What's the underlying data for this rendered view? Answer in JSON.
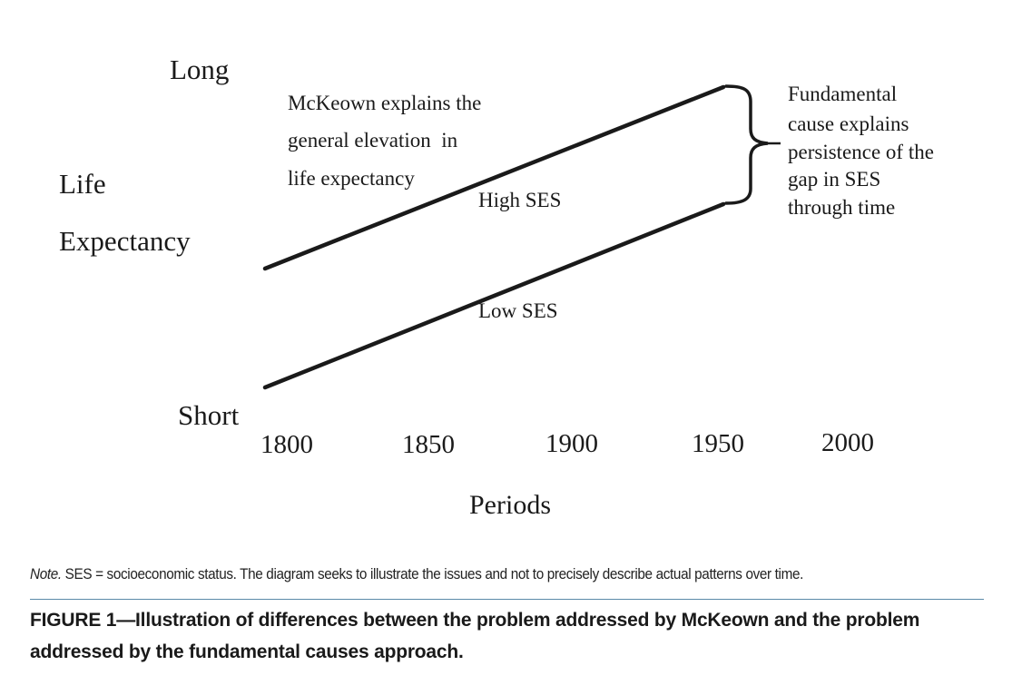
{
  "diagram": {
    "y_axis": {
      "label_line1": "Life",
      "label_line2": "Expectancy",
      "top_label": "Long",
      "bottom_label": "Short"
    },
    "x_axis": {
      "label": "Periods",
      "ticks": [
        "1800",
        "1850",
        "1900",
        "1950",
        "2000"
      ]
    },
    "lines": [
      {
        "name": "High SES",
        "label": "High SES"
      },
      {
        "name": "Low SES",
        "label": "Low SES"
      }
    ],
    "annotation_left": {
      "lines": [
        "McKeown explains the",
        "general elevation  in",
        "life expectancy"
      ]
    },
    "annotation_right": {
      "lines": [
        "Fundamental",
        "cause explains",
        "persistence of the",
        "gap in SES",
        "through time"
      ]
    },
    "line_color": "#1a1a1a"
  },
  "note": {
    "prefix": "Note.",
    "text": " SES = socioeconomic status. The diagram seeks to illustrate the issues and not to precisely describe actual patterns over time."
  },
  "caption": {
    "text": "FIGURE 1—Illustration of differences between the problem addressed by McKeown and the problem addressed by the fundamental causes approach."
  }
}
